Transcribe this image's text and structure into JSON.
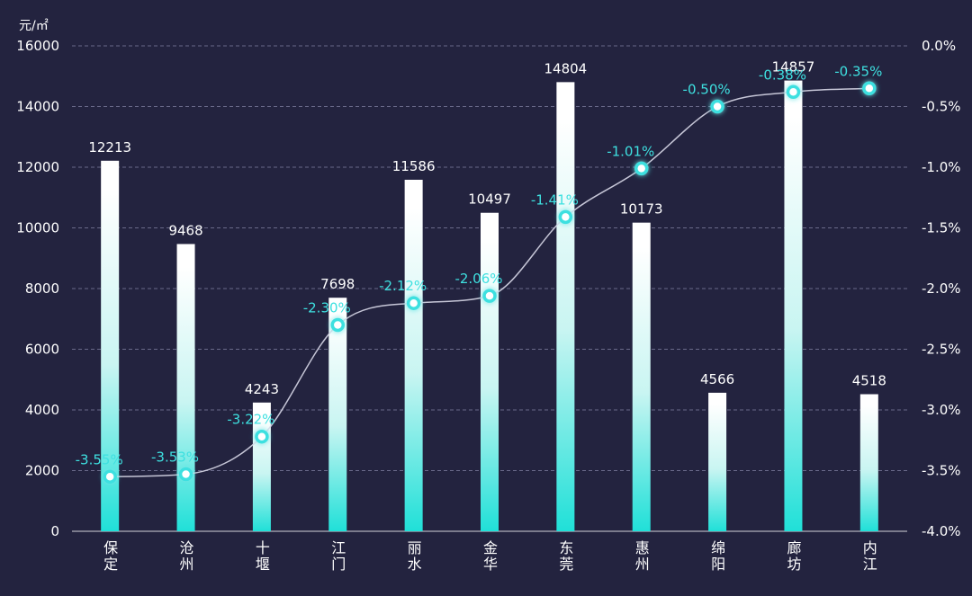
{
  "colors": {
    "background": "#23233f",
    "bar_top": "#ffffff",
    "bar_bottom": "#20e0d8",
    "line": "#d8d8e8",
    "pct_label": "#3ee0e0",
    "axis_text": "#ffffff",
    "grid": "#6a6a8a"
  },
  "chart_data": {
    "type": "bar",
    "title": "",
    "y_unit_label": "元/㎡",
    "categories": [
      "保定",
      "沧州",
      "十堰",
      "江门",
      "丽水",
      "金华",
      "东莞",
      "惠州",
      "绵阳",
      "廊坊",
      "内江"
    ],
    "series": [
      {
        "name": "price",
        "type": "bar",
        "axis": "left",
        "values": [
          12213,
          9468,
          4243,
          7698,
          11586,
          10497,
          14804,
          10173,
          4566,
          14857,
          4518
        ],
        "labels": [
          "12213",
          "9468",
          "4243",
          "7698",
          "11586",
          "10497",
          "14804",
          "10173",
          "4566",
          "14857",
          "4518"
        ]
      },
      {
        "name": "change",
        "type": "line",
        "axis": "right",
        "smooth": true,
        "values": [
          -3.55,
          -3.53,
          -3.22,
          -2.3,
          -2.12,
          -2.06,
          -1.41,
          -1.01,
          -0.5,
          -0.38,
          -0.35
        ],
        "labels": [
          "-3.55%",
          "-3.53%",
          "-3.22%",
          "-2.30%",
          "-2.12%",
          "-2.06%",
          "-1.41%",
          "-1.01%",
          "-0.50%",
          "-0.38%",
          "-0.35%"
        ]
      }
    ],
    "y_left": {
      "min": 0,
      "max": 16000,
      "ticks": [
        "0",
        "2000",
        "4000",
        "6000",
        "8000",
        "10000",
        "12000",
        "14000",
        "16000"
      ]
    },
    "y_right": {
      "min": -4.0,
      "max": 0.0,
      "ticks": [
        "-4.0%",
        "-3.5%",
        "-3.0%",
        "-2.5%",
        "-2.0%",
        "-1.5%",
        "-1.0%",
        "-0.5%",
        "0.0%"
      ]
    },
    "grid": true
  }
}
